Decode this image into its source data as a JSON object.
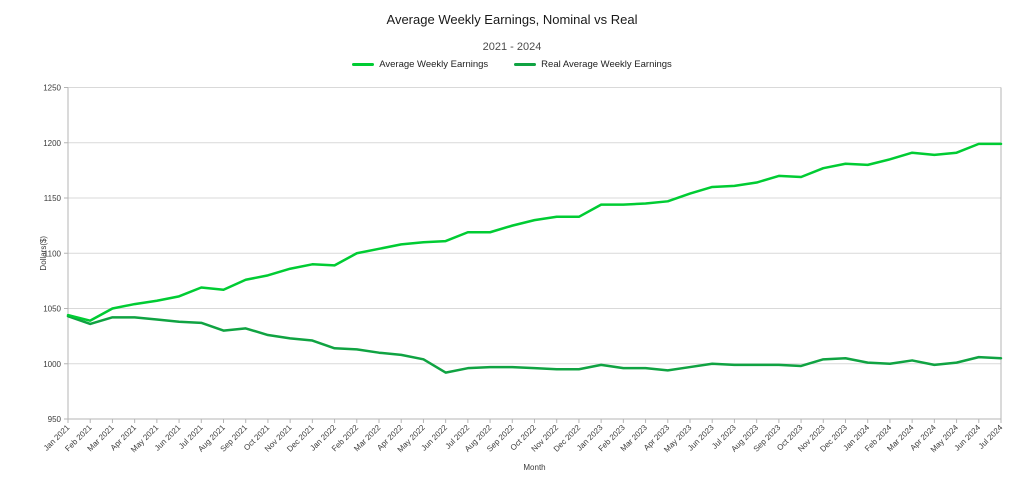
{
  "chart_data": {
    "type": "line",
    "title": "Average Weekly Earnings, Nominal vs Real",
    "subtitle": "2021 - 2024",
    "xlabel": "Month",
    "ylabel": "Dollars($)",
    "ylim": [
      950,
      1250
    ],
    "y_ticks": [
      950,
      1000,
      1050,
      1100,
      1150,
      1200,
      1250
    ],
    "grid": "horizontal",
    "legend_position": "top",
    "categories": [
      "Jan 2021",
      "Feb 2021",
      "Mar 2021",
      "Apr 2021",
      "May 2021",
      "Jun 2021",
      "Jul 2021",
      "Aug 2021",
      "Sep 2021",
      "Oct 2021",
      "Nov 2021",
      "Dec 2021",
      "Jan 2022",
      "Feb 2022",
      "Mar 2022",
      "Apr 2022",
      "May 2022",
      "Jun 2022",
      "Jul 2022",
      "Aug 2022",
      "Sep 2022",
      "Oct 2022",
      "Nov 2022",
      "Dec 2022",
      "Jan 2023",
      "Feb 2023",
      "Mar 2023",
      "Apr 2023",
      "May 2023",
      "Jun 2023",
      "Jul 2023",
      "Aug 2023",
      "Sep 2023",
      "Oct 2023",
      "Nov 2023",
      "Dec 2023",
      "Jan 2024",
      "Feb 2024",
      "Mar 2024",
      "Apr 2024",
      "May 2024",
      "Jun 2024",
      "Jul 2024"
    ],
    "series": [
      {
        "name": "Average Weekly Earnings",
        "color": "#00cc33",
        "values": [
          1044,
          1039,
          1050,
          1054,
          1057,
          1061,
          1069,
          1067,
          1076,
          1080,
          1086,
          1090,
          1089,
          1100,
          1104,
          1108,
          1110,
          1111,
          1119,
          1119,
          1125,
          1130,
          1133,
          1133,
          1144,
          1144,
          1145,
          1147,
          1154,
          1160,
          1161,
          1164,
          1170,
          1169,
          1177,
          1181,
          1180,
          1185,
          1191,
          1189,
          1191,
          1199,
          1199
        ]
      },
      {
        "name": "Real Average Weekly Earnings",
        "color": "#10a342",
        "values": [
          1043,
          1036,
          1042,
          1042,
          1040,
          1038,
          1037,
          1030,
          1032,
          1026,
          1023,
          1021,
          1014,
          1013,
          1010,
          1008,
          1004,
          992,
          996,
          997,
          997,
          996,
          995,
          995,
          999,
          996,
          996,
          994,
          997,
          1000,
          999,
          999,
          999,
          998,
          1004,
          1005,
          1001,
          1000,
          1003,
          999,
          1001,
          1006,
          1005
        ]
      }
    ]
  },
  "style": {
    "gridline_color": "#d9d9d9",
    "axis_color": "#b5b5b5",
    "tick_label_color": "#3b3b3b"
  }
}
